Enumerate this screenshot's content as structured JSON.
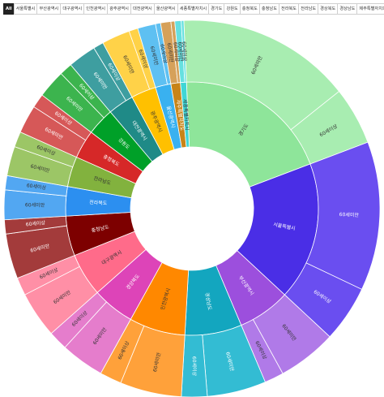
{
  "tabs": [
    {
      "label": "All",
      "active": true
    },
    {
      "label": "서울특별시"
    },
    {
      "label": "부산광역시"
    },
    {
      "label": "대구광역시"
    },
    {
      "label": "인천광역시"
    },
    {
      "label": "광주광역시"
    },
    {
      "label": "대전광역시"
    },
    {
      "label": "울산광역시"
    },
    {
      "label": "세종특별자치시"
    },
    {
      "label": "경기도"
    },
    {
      "label": "강원도"
    },
    {
      "label": "충청북도"
    },
    {
      "label": "충청남도"
    },
    {
      "label": "전라북도"
    },
    {
      "label": "전라남도"
    },
    {
      "label": "경상북도"
    },
    {
      "label": "경상남도"
    },
    {
      "label": "제주특별자치도"
    }
  ],
  "chart_data": {
    "type": "sunburst",
    "title": "",
    "start_angle_deg": -2.5,
    "direction": "clockwise",
    "series": [
      {
        "name": "경기도",
        "color": "#8ee59a",
        "children": [
          {
            "name": "60세미만",
            "value": 136,
            "color": "#a8edb1"
          },
          {
            "name": "60세이상",
            "value": 45,
            "color": "#a8edb1"
          }
        ]
      },
      {
        "name": "서울특별시",
        "color": "#4a2ee6",
        "children": [
          {
            "name": "60세미만",
            "value": 116,
            "color": "#6a4ef0"
          },
          {
            "name": "60세이상",
            "value": 44,
            "color": "#6a4ef0"
          }
        ]
      },
      {
        "name": "부산광역시",
        "color": "#9c4fdd",
        "children": [
          {
            "name": "60세미만",
            "value": 46,
            "color": "#b07ae8"
          },
          {
            "name": "60세이상",
            "value": 15,
            "color": "#b07ae8"
          }
        ]
      },
      {
        "name": "경상남도",
        "color": "#13a6bf",
        "children": [
          {
            "name": "60세미만",
            "value": 46,
            "color": "#33bcd3"
          },
          {
            "name": "60세이상",
            "value": 20,
            "color": "#33bcd3"
          }
        ]
      },
      {
        "name": "인천광역시",
        "color": "#ff8800",
        "children": [
          {
            "name": "60세미만",
            "value": 48,
            "color": "#ffa13a"
          },
          {
            "name": "60세이상",
            "value": 17,
            "color": "#ffa13a"
          }
        ]
      },
      {
        "name": "경상북도",
        "color": "#dd44b8",
        "children": [
          {
            "name": "60세미만",
            "value": 34,
            "color": "#e57dcc"
          },
          {
            "name": "60세이상",
            "value": 15,
            "color": "#e57dcc"
          }
        ]
      },
      {
        "name": "대구광역시",
        "color": "#ff6b8a",
        "children": [
          {
            "name": "60세미만",
            "value": 36,
            "color": "#ff8fa6"
          },
          {
            "name": "60세이상",
            "value": 14,
            "color": "#ff8fa6"
          }
        ]
      },
      {
        "name": "충청남도",
        "color": "#7d0000",
        "children": [
          {
            "name": "60세미만",
            "value": 35,
            "color": "#a33b3b"
          },
          {
            "name": "60세이상",
            "value": 11,
            "color": "#a33b3b"
          }
        ]
      },
      {
        "name": "전라북도",
        "color": "#2c8ff0",
        "children": [
          {
            "name": "60세미만",
            "value": 23,
            "color": "#52a7f2"
          },
          {
            "name": "60세이상",
            "value": 11,
            "color": "#52a7f2"
          }
        ]
      },
      {
        "name": "전라남도",
        "color": "#82b23e",
        "children": [
          {
            "name": "60세미만",
            "value": 23,
            "color": "#9cc666"
          },
          {
            "name": "60세이상",
            "value": 12,
            "color": "#9cc666"
          }
        ]
      },
      {
        "name": "충청북도",
        "color": "#d62828",
        "children": [
          {
            "name": "60세미만",
            "value": 22,
            "color": "#d65858"
          },
          {
            "name": "60세이상",
            "value": 11,
            "color": "#d65858"
          }
        ]
      },
      {
        "name": "강원도",
        "color": "#00a028",
        "children": [
          {
            "name": "60세미만",
            "value": 22,
            "color": "#3cb44e"
          },
          {
            "name": "60세이상",
            "value": 10,
            "color": "#3cb44e"
          }
        ]
      },
      {
        "name": "대전광역시",
        "color": "#1f8a87",
        "children": [
          {
            "name": "60세미만",
            "value": 22,
            "color": "#3e9ea0"
          },
          {
            "name": "60세이상",
            "value": 8,
            "color": "#3e9ea0"
          }
        ]
      },
      {
        "name": "광주광역시",
        "color": "#ffc000",
        "children": [
          {
            "name": "60세미만",
            "value": 22,
            "color": "#ffd248"
          },
          {
            "name": "60세이상",
            "value": 7,
            "color": "#ffd248"
          }
        ]
      },
      {
        "name": "울산광역시",
        "color": "#39b1f0",
        "children": [
          {
            "name": "60세미만",
            "value": 14,
            "color": "#5ec0f2"
          },
          {
            "name": "60세이상",
            "value": 4,
            "color": "#5ec0f2"
          }
        ]
      },
      {
        "name": "제주특별자치도",
        "color": "#c88418",
        "children": [
          {
            "name": "60세미만",
            "value": 8,
            "color": "#d6a15a"
          },
          {
            "name": "60세이상",
            "value": 3,
            "color": "#d6a15a"
          }
        ]
      },
      {
        "name": "세종특별자치시",
        "color": "#3fd6d6",
        "children": [
          {
            "name": "60세미만",
            "value": 5,
            "color": "#66e0e0"
          },
          {
            "name": "60세이상",
            "value": 2,
            "color": "#66e0e0"
          }
        ]
      }
    ]
  }
}
